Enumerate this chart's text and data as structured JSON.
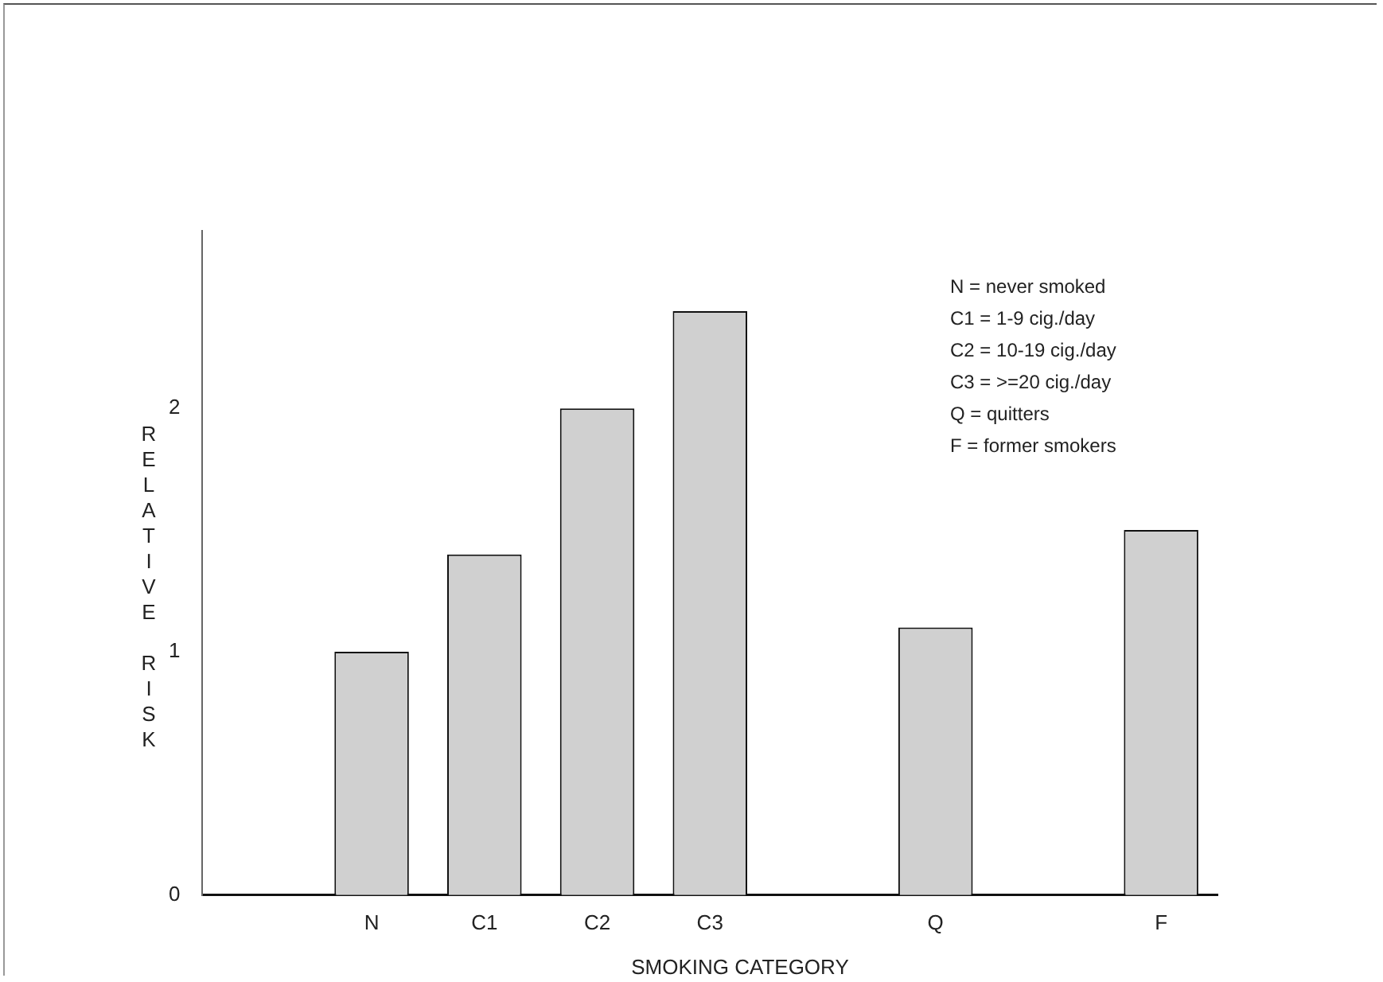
{
  "chart_data": {
    "type": "bar",
    "xlabel": "SMOKING CATEGORY",
    "ylabel": "RELATIVE RISK",
    "categories": [
      null,
      "N",
      "C1",
      "C2",
      "C3",
      null,
      "Q",
      null,
      "F"
    ],
    "values": [
      null,
      1.0,
      1.4,
      2.0,
      2.4,
      null,
      1.1,
      null,
      1.5
    ],
    "color": "#d0d0d0",
    "ylim": [
      0,
      2.73
    ],
    "yticks": [
      0,
      1,
      2
    ],
    "grid": false,
    "legend": false,
    "annotations": [
      "N = never smoked",
      "C1 = 1-9 cig./day",
      "C2 = 10-19 cig./day",
      "C3 = >=20 cig./day",
      "Q = quitters",
      "F = former smokers"
    ]
  }
}
